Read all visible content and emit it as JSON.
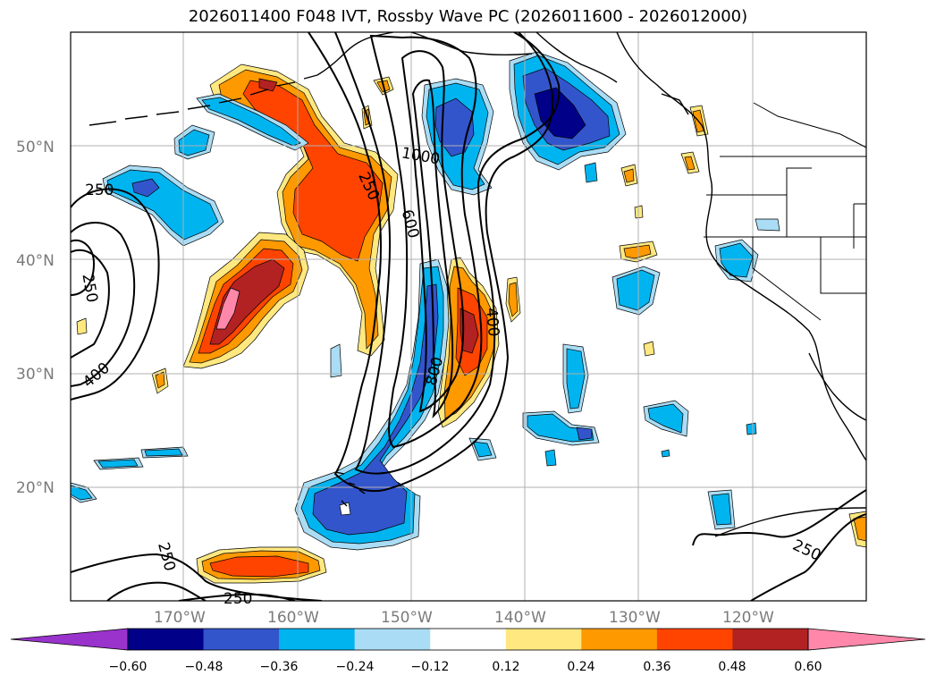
{
  "title": "2026011400 F048 IVT, Rossby Wave PC (2026011600 - 2026012000)",
  "lat_labels": [
    "50°N",
    "40°N",
    "30°N",
    "20°N"
  ],
  "lon_labels": [
    "170°W",
    "160°W",
    "150°W",
    "140°W",
    "130°W",
    "120°W"
  ],
  "contour_labels": [
    "250",
    "250",
    "250",
    "400",
    "600",
    "1000",
    "400",
    "800",
    "250",
    "250",
    "250"
  ],
  "colorbar": {
    "tick_labels": [
      "−0.60",
      "−0.48",
      "−0.36",
      "−0.24",
      "−0.12",
      "0.12",
      "0.24",
      "0.36",
      "0.48",
      "0.60"
    ],
    "colors": [
      "#9933cc",
      "#000088",
      "#3355cc",
      "#00b4f0",
      "#aaddf5",
      "#ffffff",
      "#ffe880",
      "#ff9900",
      "#ff4400",
      "#b22222",
      "#ff88aa"
    ]
  },
  "legend_colors": {
    "pos_strong": "#b22222",
    "pos_mid": "#ff4400",
    "pos_low": "#ff9900",
    "pos_weak": "#ffe880",
    "neg_weak": "#aaddf5",
    "neg_low": "#00b4f0",
    "neg_mid": "#3355cc",
    "neg_strong": "#000088",
    "pos_max": "#ff88aa"
  }
}
